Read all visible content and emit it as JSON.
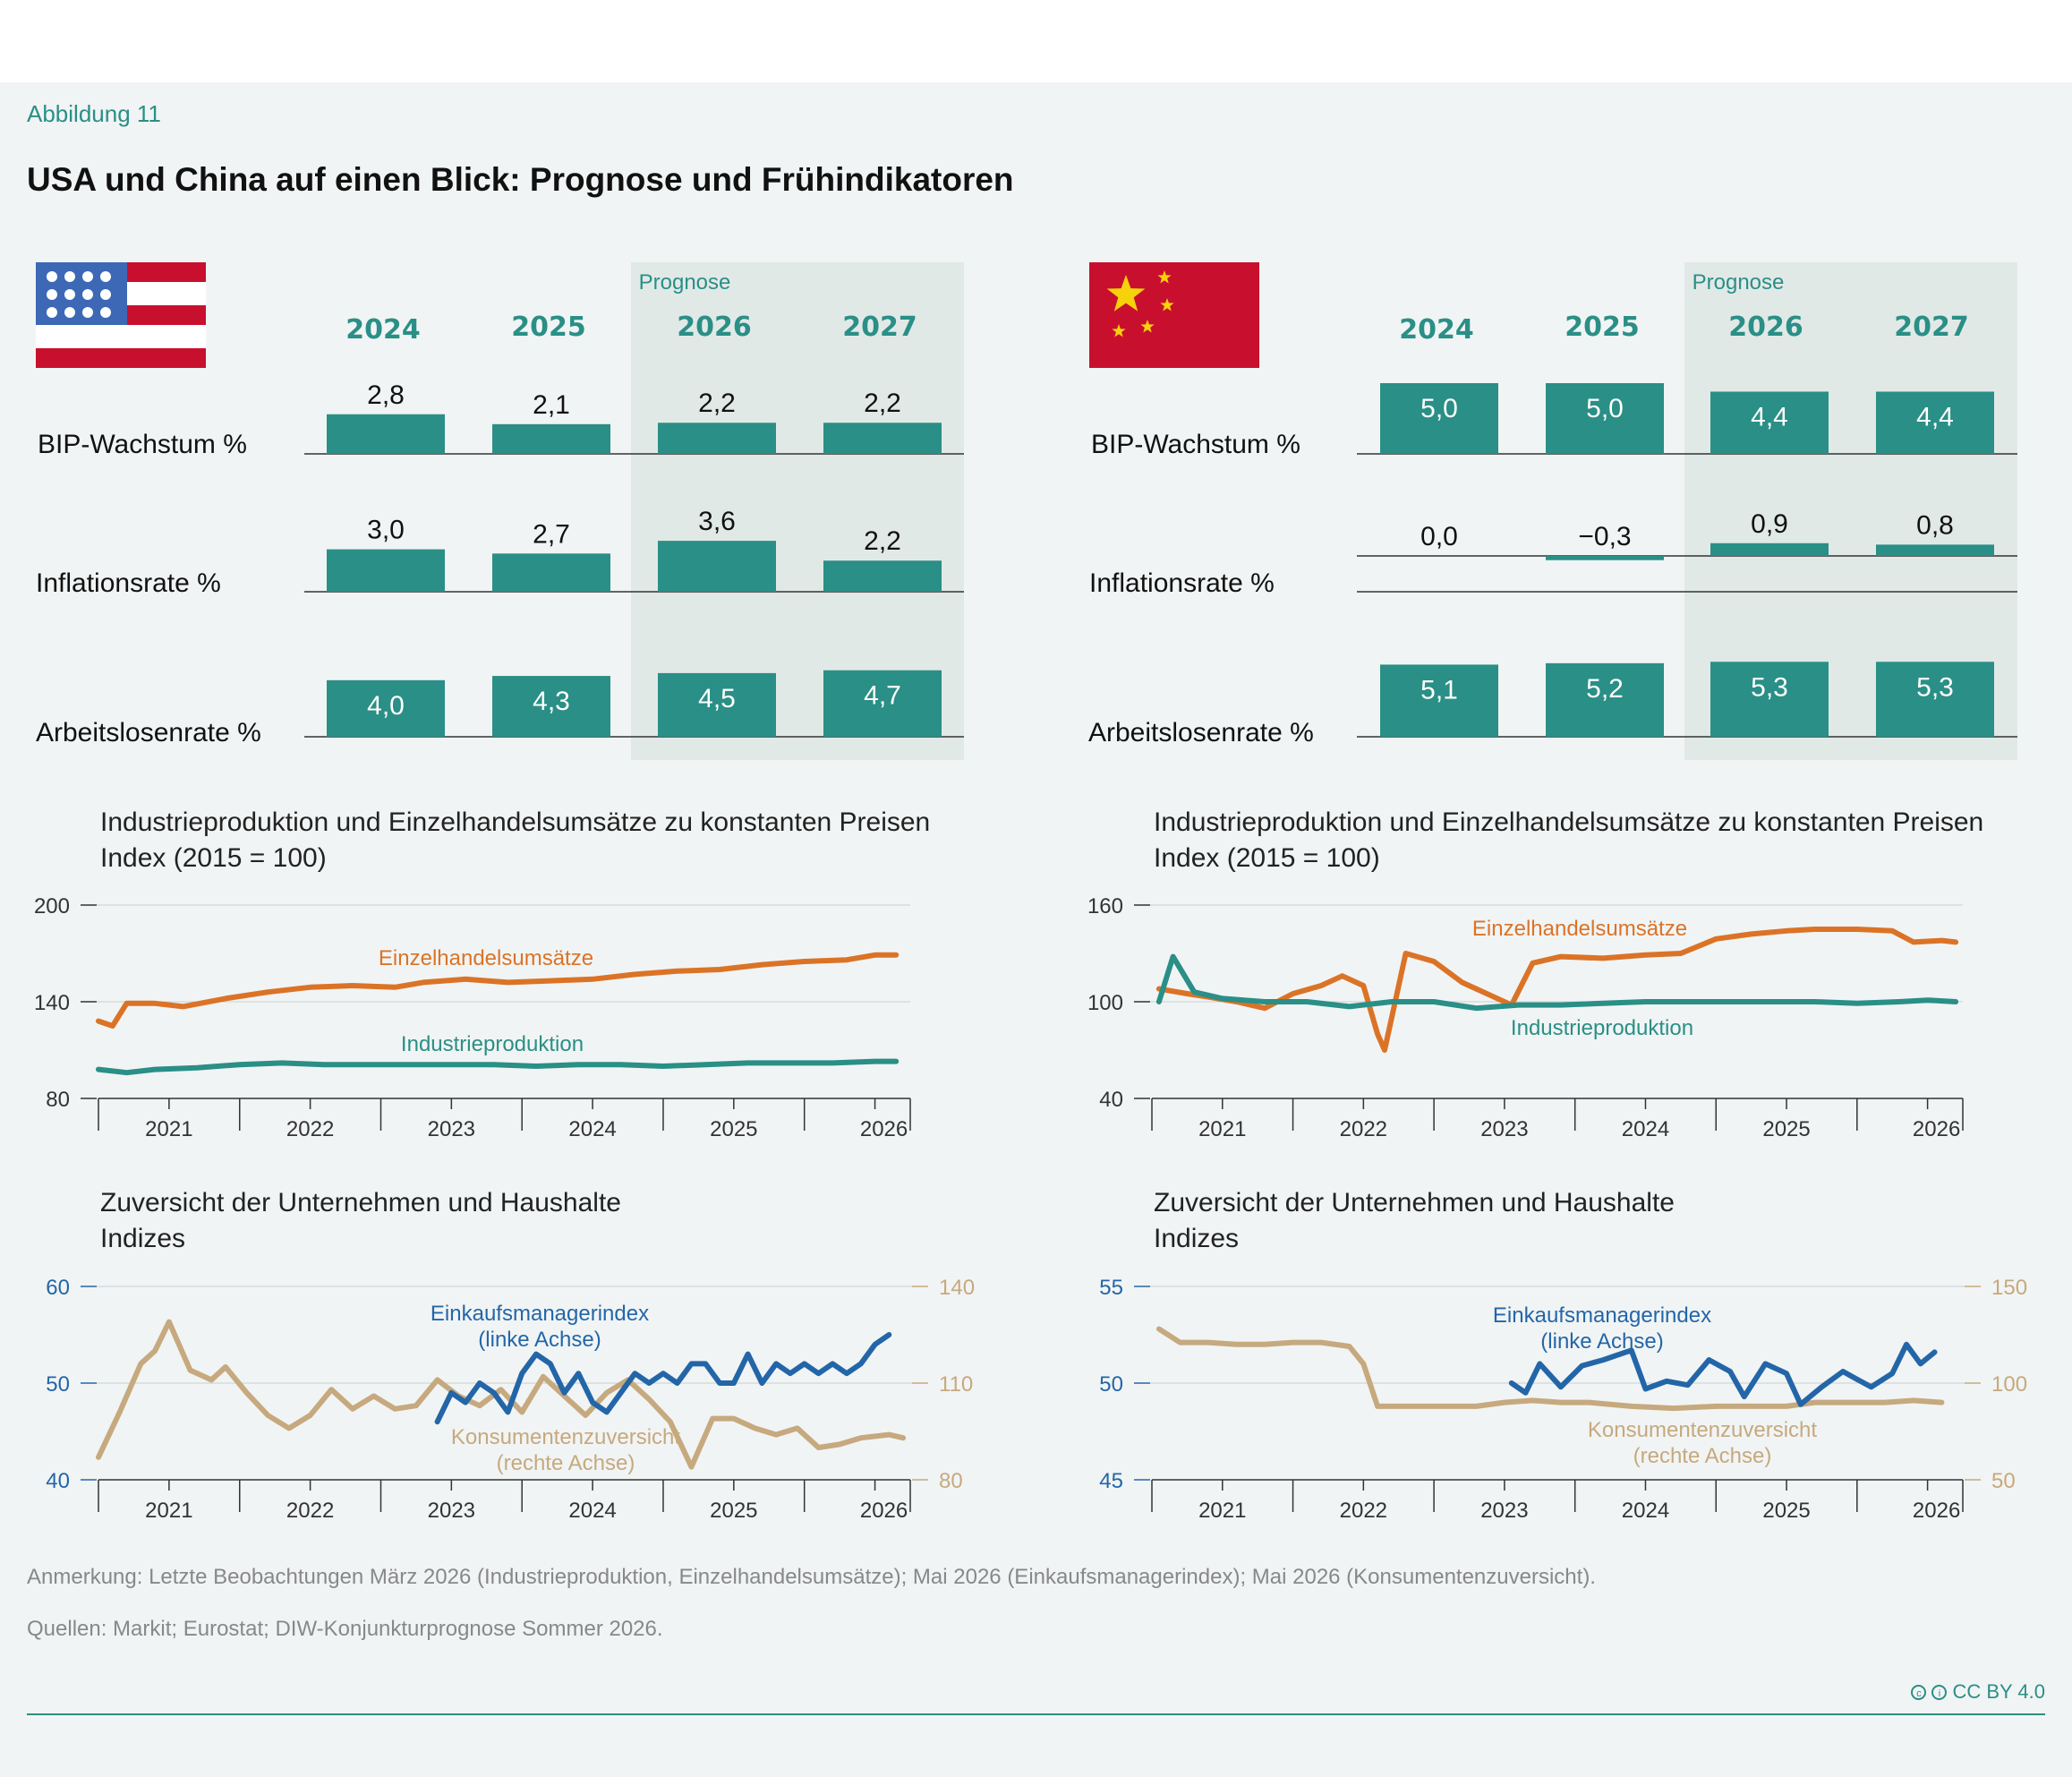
{
  "figure_label": "Abbildung 11",
  "title": "USA und China auf einen Blick: Prognose und Frühindikatoren",
  "note": "Anmerkung: Letzte Beobachtungen März 2026 (Industrieproduktion, Einzelhandelsumsätze); Mai 2026 (Einkaufsmanagerindex); Mai 2026 (Konsumentenzuversicht).",
  "sources": "Quellen: Markit; Eurostat; DIW-Konjunkturprognose Sommer 2026.",
  "license": "CC BY 4.0",
  "license_icons": [
    "cc",
    "by"
  ],
  "colors": {
    "teal": "#2a8f86",
    "orange": "#db7327",
    "blue": "#2366a8",
    "tan": "#c6a97e",
    "forecast_shade": "#e1e9e7"
  },
  "chart_data": [
    {
      "type": "bar",
      "country": "USA",
      "flag": "us-flag-icon",
      "forecast_label": "Prognose",
      "categories": [
        "2024",
        "2025",
        "2026",
        "2027"
      ],
      "forecast_categories": [
        "2026",
        "2027"
      ],
      "series": [
        {
          "name": "BIP-Wachstum %",
          "values": [
            2.8,
            2.1,
            2.2,
            2.2
          ],
          "labels": [
            "2,8",
            "2,1",
            "2,2",
            "2,2"
          ]
        },
        {
          "name": "Inflationsrate %",
          "values": [
            3.0,
            2.7,
            3.6,
            2.2
          ],
          "labels": [
            "3,0",
            "2,7",
            "3,6",
            "2,2"
          ]
        },
        {
          "name": "Arbeitslosenrate %",
          "values": [
            4.0,
            4.3,
            4.5,
            4.7
          ],
          "labels": [
            "4,0",
            "4,3",
            "4,5",
            "4,7"
          ]
        }
      ]
    },
    {
      "type": "bar",
      "country": "China",
      "flag": "china-flag-icon",
      "forecast_label": "Prognose",
      "categories": [
        "2024",
        "2025",
        "2026",
        "2027"
      ],
      "forecast_categories": [
        "2026",
        "2027"
      ],
      "series": [
        {
          "name": "BIP-Wachstum %",
          "values": [
            5.0,
            5.0,
            4.4,
            4.4
          ],
          "labels": [
            "5,0",
            "5,0",
            "4,4",
            "4,4"
          ]
        },
        {
          "name": "Inflationsrate %",
          "values": [
            0.0,
            -0.3,
            0.9,
            0.8
          ],
          "labels": [
            "0,0",
            "−0,3",
            "0,9",
            "0,8"
          ]
        },
        {
          "name": "Arbeitslosenrate %",
          "values": [
            5.1,
            5.2,
            5.3,
            5.3
          ],
          "labels": [
            "5,1",
            "5,2",
            "5,3",
            "5,3"
          ]
        }
      ]
    },
    {
      "type": "line",
      "country": "USA",
      "title": "Industrieproduktion und Einzelhandelsumsätze zu konstanten Preisen",
      "subtitle": "Index (2015 = 100)",
      "xlim": [
        2020.5,
        2026.25
      ],
      "ylim": [
        80,
        200
      ],
      "yticks": [
        80,
        140,
        200
      ],
      "year_labels": [
        "2021",
        "2022",
        "2023",
        "2024",
        "2025",
        "2026"
      ],
      "series": [
        {
          "name": "Einzelhandelsumsätze",
          "color": "#db7327",
          "x": [
            2020.5,
            2020.6,
            2020.7,
            2020.9,
            2021.1,
            2021.4,
            2021.7,
            2022.0,
            2022.3,
            2022.6,
            2022.8,
            2023.1,
            2023.4,
            2023.7,
            2024.0,
            2024.3,
            2024.6,
            2024.9,
            2025.2,
            2025.5,
            2025.8,
            2026.0,
            2026.15
          ],
          "values": [
            128,
            125,
            139,
            139,
            137,
            142,
            146,
            149,
            150,
            149,
            152,
            154,
            152,
            153,
            154,
            157,
            159,
            160,
            163,
            165,
            166,
            169,
            169
          ]
        },
        {
          "name": "Industrieproduktion",
          "color": "#2a8f86",
          "x": [
            2020.5,
            2020.7,
            2020.9,
            2021.2,
            2021.5,
            2021.8,
            2022.1,
            2022.4,
            2022.7,
            2023.0,
            2023.3,
            2023.6,
            2023.9,
            2024.2,
            2024.5,
            2024.8,
            2025.1,
            2025.4,
            2025.7,
            2026.0,
            2026.15
          ],
          "values": [
            98,
            96,
            98,
            99,
            101,
            102,
            101,
            101,
            101,
            101,
            101,
            100,
            101,
            101,
            100,
            101,
            102,
            102,
            102,
            103,
            103
          ]
        }
      ]
    },
    {
      "type": "line",
      "country": "China",
      "title": "Industrieproduktion und Einzelhandelsumsätze zu konstanten Preisen",
      "subtitle": "Index (2015 = 100)",
      "xlim": [
        2020.5,
        2026.25
      ],
      "ylim": [
        40,
        160
      ],
      "yticks": [
        40,
        100,
        160
      ],
      "year_labels": [
        "2021",
        "2022",
        "2023",
        "2024",
        "2025",
        "2026"
      ],
      "series": [
        {
          "name": "Einzelhandelsumsätze",
          "color": "#db7327",
          "x": [
            2020.55,
            2020.75,
            2020.9,
            2021.1,
            2021.3,
            2021.5,
            2021.7,
            2021.85,
            2022.0,
            2022.1,
            2022.15,
            2022.3,
            2022.5,
            2022.7,
            2022.9,
            2023.05,
            2023.2,
            2023.4,
            2023.7,
            2024.0,
            2024.25,
            2024.5,
            2024.75,
            2025.0,
            2025.2,
            2025.5,
            2025.75,
            2025.9,
            2026.1,
            2026.2
          ],
          "values": [
            108,
            105,
            103,
            100,
            96,
            105,
            110,
            116,
            110,
            80,
            70,
            130,
            125,
            112,
            104,
            98,
            124,
            128,
            127,
            129,
            130,
            139,
            142,
            144,
            145,
            145,
            144,
            137,
            138,
            137
          ]
        },
        {
          "name": "Industrieproduktion",
          "color": "#2a8f86",
          "x": [
            2020.55,
            2020.65,
            2020.8,
            2021.0,
            2021.3,
            2021.6,
            2021.9,
            2022.2,
            2022.5,
            2022.8,
            2023.1,
            2023.4,
            2023.7,
            2024.0,
            2024.3,
            2024.6,
            2024.9,
            2025.2,
            2025.5,
            2025.8,
            2026.0,
            2026.2
          ],
          "values": [
            100,
            128,
            106,
            102,
            100,
            100,
            97,
            100,
            100,
            96,
            98,
            98,
            99,
            100,
            100,
            100,
            100,
            100,
            99,
            100,
            101,
            100
          ]
        }
      ]
    },
    {
      "type": "line",
      "country": "USA",
      "title": "Zuversicht der Unternehmen und Haushalte",
      "subtitle": "Indizes",
      "xlim": [
        2020.5,
        2026.25
      ],
      "ylim_left": [
        40,
        60
      ],
      "ylim_right": [
        80,
        140
      ],
      "yticks_left": [
        40,
        50,
        60
      ],
      "yticks_right": [
        80,
        110,
        140
      ],
      "year_labels": [
        "2021",
        "2022",
        "2023",
        "2024",
        "2025",
        "2026"
      ],
      "series": [
        {
          "name": "Konsumentenzuversicht",
          "label_lines": [
            "Konsumentenzuversicht",
            "(rechte Achse)"
          ],
          "axis": "right",
          "color": "#c6a97e",
          "x": [
            2020.5,
            2020.65,
            2020.8,
            2020.9,
            2021.0,
            2021.15,
            2021.3,
            2021.4,
            2021.55,
            2021.7,
            2021.85,
            2022.0,
            2022.15,
            2022.3,
            2022.45,
            2022.6,
            2022.75,
            2022.9,
            2023.05,
            2023.2,
            2023.35,
            2023.5,
            2023.65,
            2023.8,
            2023.95,
            2024.1,
            2024.25,
            2024.4,
            2024.55,
            2024.7,
            2024.85,
            2025.0,
            2025.15,
            2025.3,
            2025.45,
            2025.6,
            2025.75,
            2025.9,
            2026.1,
            2026.2
          ],
          "values": [
            87,
            101,
            116,
            120,
            129,
            114,
            111,
            115,
            107,
            100,
            96,
            100,
            108,
            102,
            106,
            102,
            103,
            111,
            106,
            103,
            108,
            101,
            112,
            106,
            100,
            107,
            111,
            105,
            98,
            84,
            99,
            99,
            96,
            94,
            96,
            90,
            91,
            93,
            94,
            93
          ]
        },
        {
          "name": "Einkaufsmanagerindex",
          "label_lines": [
            "Einkaufsmanagerindex",
            "(linke Achse)"
          ],
          "axis": "left",
          "color": "#2366a8",
          "x": [
            2022.9,
            2023.0,
            2023.1,
            2023.2,
            2023.3,
            2023.4,
            2023.5,
            2023.6,
            2023.7,
            2023.8,
            2023.9,
            2024.0,
            2024.1,
            2024.2,
            2024.3,
            2024.4,
            2024.5,
            2024.6,
            2024.7,
            2024.8,
            2024.9,
            2025.0,
            2025.1,
            2025.2,
            2025.3,
            2025.4,
            2025.5,
            2025.6,
            2025.7,
            2025.8,
            2025.9,
            2026.0,
            2026.1
          ],
          "values": [
            46,
            49,
            48,
            50,
            49,
            47,
            51,
            53,
            52,
            49,
            51,
            48,
            47,
            49,
            51,
            50,
            51,
            50,
            52,
            52,
            50,
            50,
            53,
            50,
            52,
            51,
            52,
            51,
            52,
            51,
            52,
            54,
            55
          ]
        }
      ]
    },
    {
      "type": "line",
      "country": "China",
      "title": "Zuversicht der Unternehmen und Haushalte",
      "subtitle": "Indizes",
      "xlim": [
        2020.5,
        2026.25
      ],
      "ylim_left": [
        45,
        55
      ],
      "ylim_right": [
        50,
        150
      ],
      "yticks_left": [
        45,
        50,
        55
      ],
      "yticks_right": [
        50,
        100,
        150
      ],
      "year_labels": [
        "2021",
        "2022",
        "2023",
        "2024",
        "2025",
        "2026"
      ],
      "series": [
        {
          "name": "Konsumentenzuversicht",
          "label_lines": [
            "Konsumentenzuversicht",
            "(rechte Achse)"
          ],
          "axis": "right",
          "color": "#c6a97e",
          "x": [
            2020.55,
            2020.7,
            2020.9,
            2021.1,
            2021.3,
            2021.5,
            2021.7,
            2021.9,
            2022.0,
            2022.1,
            2022.25,
            2022.4,
            2022.6,
            2022.8,
            2023.0,
            2023.2,
            2023.4,
            2023.6,
            2023.9,
            2024.2,
            2024.5,
            2024.8,
            2025.0,
            2025.2,
            2025.5,
            2025.7,
            2025.9,
            2026.1
          ],
          "values": [
            128,
            121,
            121,
            120,
            120,
            121,
            121,
            119,
            110,
            88,
            88,
            88,
            88,
            88,
            90,
            91,
            90,
            90,
            88,
            87,
            88,
            88,
            88,
            90,
            90,
            90,
            91,
            90
          ]
        },
        {
          "name": "Einkaufsmanagerindex",
          "label_lines": [
            "Einkaufsmanagerindex",
            "(linke Achse)"
          ],
          "axis": "left",
          "color": "#2366a8",
          "x": [
            2023.05,
            2023.15,
            2023.25,
            2023.4,
            2023.55,
            2023.7,
            2023.9,
            2024.0,
            2024.15,
            2024.3,
            2024.45,
            2024.6,
            2024.7,
            2024.85,
            2025.0,
            2025.1,
            2025.25,
            2025.4,
            2025.5,
            2025.6,
            2025.75,
            2025.85,
            2025.95,
            2026.05
          ],
          "values": [
            50.0,
            49.5,
            51.0,
            49.8,
            50.9,
            51.2,
            51.7,
            49.7,
            50.1,
            49.9,
            51.2,
            50.6,
            49.3,
            51.0,
            50.5,
            48.9,
            49.8,
            50.6,
            50.2,
            49.8,
            50.5,
            52.0,
            51.0,
            51.6
          ]
        }
      ]
    }
  ]
}
